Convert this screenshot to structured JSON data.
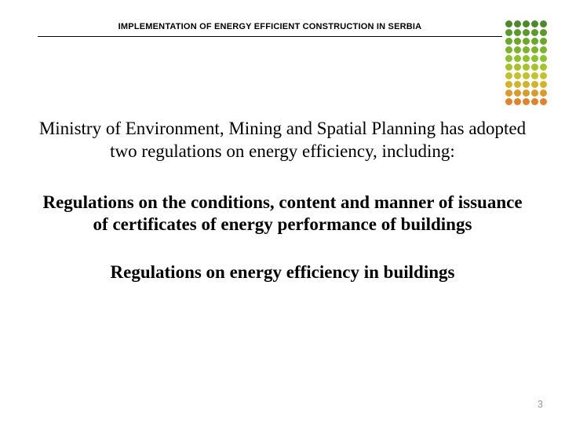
{
  "header": {
    "title": "IMPLEMENTATION OF ENERGY EFFICIENT CONSTRUCTION IN SERBIA"
  },
  "dot_grid": {
    "rows": 10,
    "cols": 5,
    "colors": [
      [
        "#4a8a2a",
        "#4a8a2a",
        "#4a8a2a",
        "#4a8a2a",
        "#4a8a2a"
      ],
      [
        "#5a9a2a",
        "#5a9a2a",
        "#5a9a2a",
        "#5a9a2a",
        "#5a9a2a"
      ],
      [
        "#6aa82a",
        "#6aa82a",
        "#6aa82a",
        "#6aa82a",
        "#6aa82a"
      ],
      [
        "#7ab52a",
        "#7ab52a",
        "#7ab52a",
        "#7ab52a",
        "#7ab52a"
      ],
      [
        "#8cc22a",
        "#8cc22a",
        "#8cc22a",
        "#8cc22a",
        "#8cc22a"
      ],
      [
        "#a8c22a",
        "#a8c22a",
        "#a8c22a",
        "#a8c22a",
        "#a8c22a"
      ],
      [
        "#c4c22a",
        "#c4c22a",
        "#c4c22a",
        "#c4c22a",
        "#c4c22a"
      ],
      [
        "#d4b22a",
        "#d4b22a",
        "#d4b22a",
        "#d4b22a",
        "#d4b22a"
      ],
      [
        "#dc9a2a",
        "#dc9a2a",
        "#dc9a2a",
        "#dc9a2a",
        "#dc9a2a"
      ],
      [
        "#e2822a",
        "#e2822a",
        "#e2822a",
        "#e2822a",
        "#e2822a"
      ]
    ]
  },
  "body": {
    "intro": "Ministry of Environment, Mining and Spatial Planning has adopted two regulations on energy efficiency, including:",
    "regulation1": "Regulations on the conditions, content and manner of issuance of certificates of energy performance of buildings",
    "regulation2": "Regulations on energy efficiency in buildings"
  },
  "page_number": "3"
}
